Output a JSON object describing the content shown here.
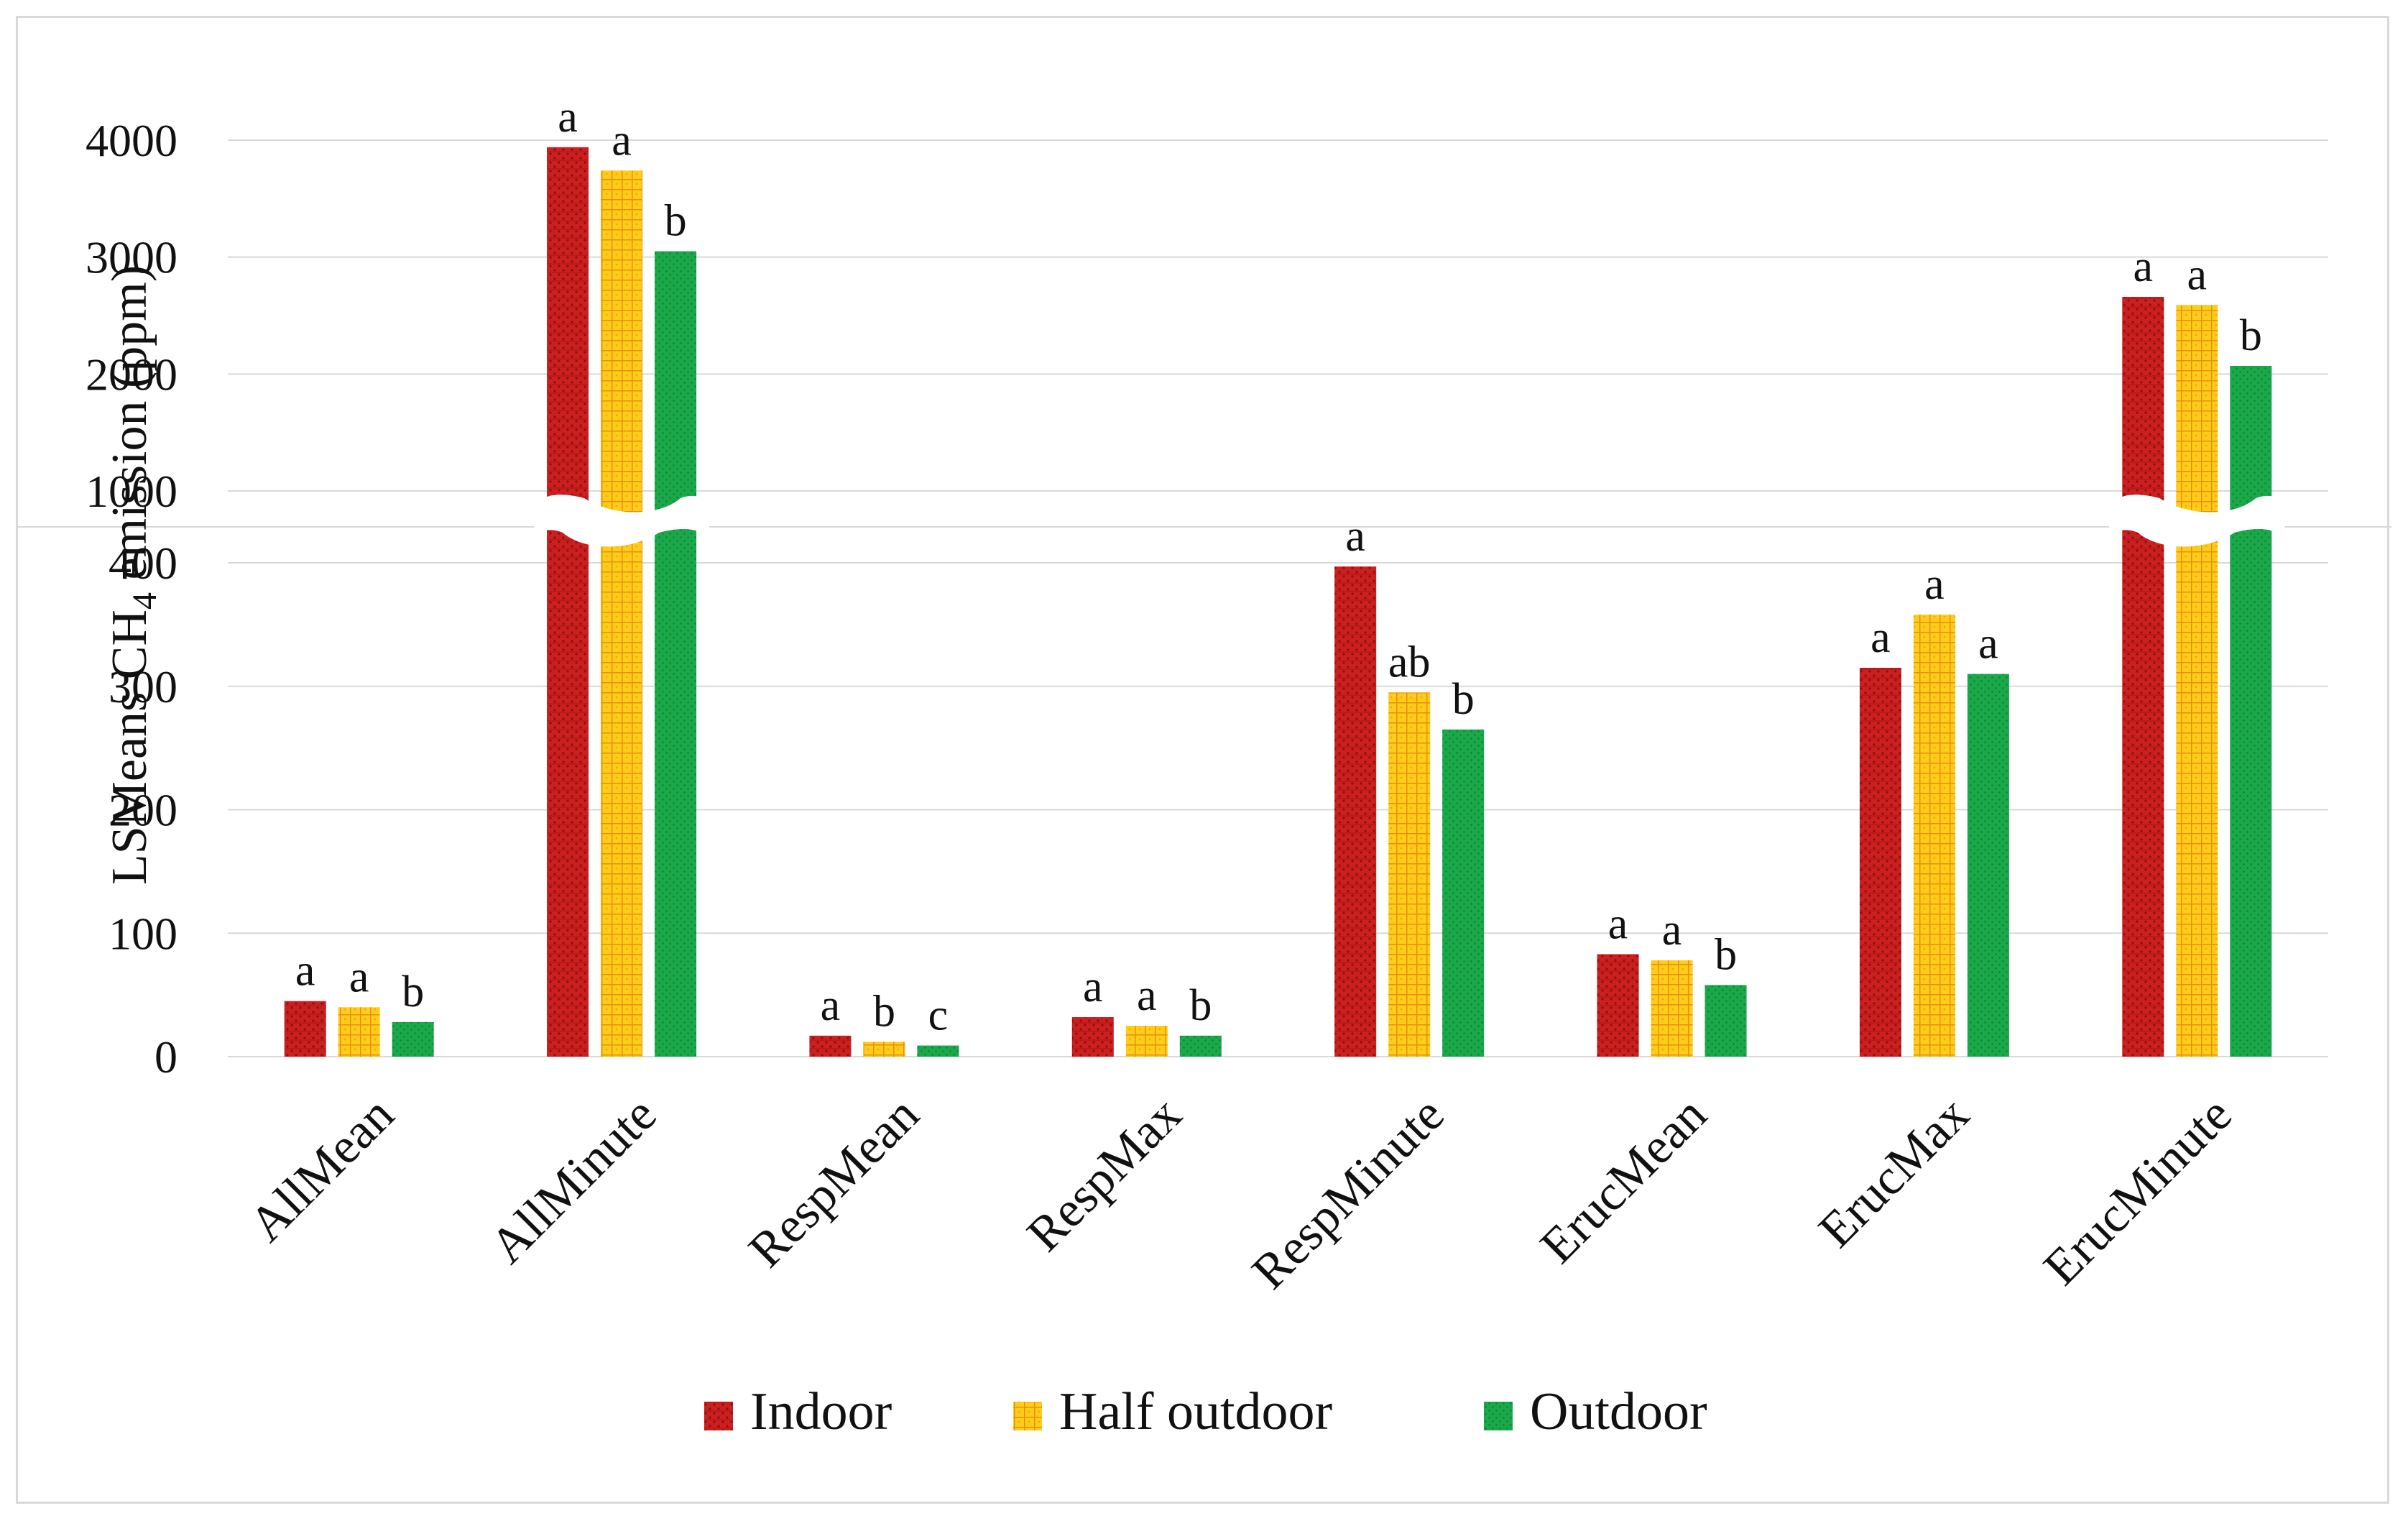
{
  "chart_data": {
    "type": "bar",
    "ylabel_prefix": "LSMeans CH",
    "ylabel_subscript": "4",
    "ylabel_suffix": " emission (ppm)",
    "categories": [
      "AllMean",
      "AllMinute",
      "RespMean",
      "RespMax",
      "RespMinute",
      "ErucMean",
      "ErucMax",
      "ErucMinute"
    ],
    "series": [
      {
        "name": "Indoor",
        "color": "#cc1f1f",
        "pattern": "dots",
        "values": [
          45,
          3940,
          17,
          32,
          397,
          83,
          315,
          2660
        ],
        "letters": [
          "a",
          "a",
          "a",
          "a",
          "a",
          "a",
          "a",
          "a"
        ]
      },
      {
        "name": "Half outdoor",
        "color": "#ffcc1a",
        "pattern": "grid",
        "values": [
          40,
          3740,
          12,
          25,
          295,
          78,
          358,
          2590
        ],
        "letters": [
          "a",
          "a",
          "b",
          "a",
          "ab",
          "a",
          "a",
          "a"
        ]
      },
      {
        "name": "Outdoor",
        "color": "#1aa84a",
        "pattern": "fine-dots",
        "values": [
          28,
          3050,
          9,
          17,
          265,
          58,
          310,
          2070
        ],
        "letters": [
          "b",
          "b",
          "c",
          "b",
          "b",
          "b",
          "a",
          "b"
        ]
      }
    ],
    "y_axis_lower": {
      "ylim": [
        0,
        400
      ],
      "ticks": [
        0,
        100,
        200,
        300,
        400
      ]
    },
    "y_axis_upper": {
      "ylim": [
        1000,
        4000
      ],
      "ticks": [
        1000,
        2000,
        3000,
        4000
      ]
    },
    "axis_break": true,
    "grid": true,
    "legend": "bottom-center"
  }
}
